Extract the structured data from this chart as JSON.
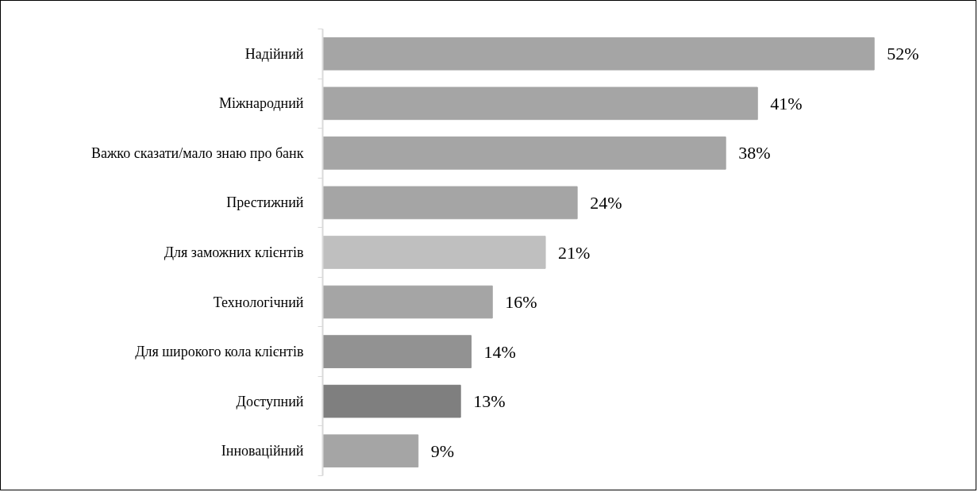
{
  "chart_data": {
    "type": "bar",
    "orientation": "horizontal",
    "categories": [
      "Надійний",
      "Міжнародний",
      "Важко сказати/мало знаю про банк",
      "Престижний",
      "Для заможних клієнтів",
      "Технологічний",
      "Для широкого кола клієнтів",
      "Доступний",
      "Інноваційний"
    ],
    "values": [
      52,
      41,
      38,
      24,
      21,
      16,
      14,
      13,
      9
    ],
    "value_labels": [
      "52%",
      "41%",
      "38%",
      "24%",
      "21%",
      "16%",
      "14%",
      "13%",
      "9%"
    ],
    "colors": [
      "#a5a5a5",
      "#a5a5a5",
      "#a5a5a5",
      "#a5a5a5",
      "#bfbfbf",
      "#a5a5a5",
      "#929292",
      "#7f7f7f",
      "#a5a5a5"
    ],
    "grid": false
  }
}
